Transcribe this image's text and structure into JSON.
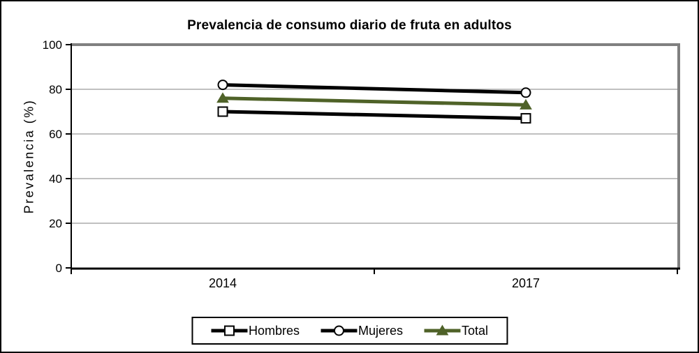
{
  "window": {
    "background": "#ffffff",
    "border_color": "#000000"
  },
  "chart_data": {
    "type": "line",
    "title": "Prevalencia de consumo diario de fruta en adultos",
    "xlabel": "",
    "ylabel": "Prevalencia (%)",
    "categories": [
      "2014",
      "2017"
    ],
    "series": [
      {
        "name": "Hombres",
        "values": [
          70,
          67
        ],
        "color": "#000000",
        "marker": "square",
        "marker_fill": "#ffffff",
        "marker_stroke": "#000000"
      },
      {
        "name": "Mujeres",
        "values": [
          82,
          78.5
        ],
        "color": "#000000",
        "marker": "circle",
        "marker_fill": "#ffffff",
        "marker_stroke": "#000000"
      },
      {
        "name": "Total",
        "values": [
          76,
          73
        ],
        "color": "#4f6228",
        "marker": "triangle",
        "marker_fill": "#4f6228",
        "marker_stroke": "#4f6228"
      }
    ],
    "ylim": [
      0,
      100
    ],
    "yticks": [
      0,
      20,
      40,
      60,
      80,
      100
    ],
    "grid": true,
    "legend_position": "bottom",
    "colors": {
      "gridline": "#808080",
      "plot_border": "#808080",
      "axis": "#000000",
      "text": "#000000"
    }
  }
}
